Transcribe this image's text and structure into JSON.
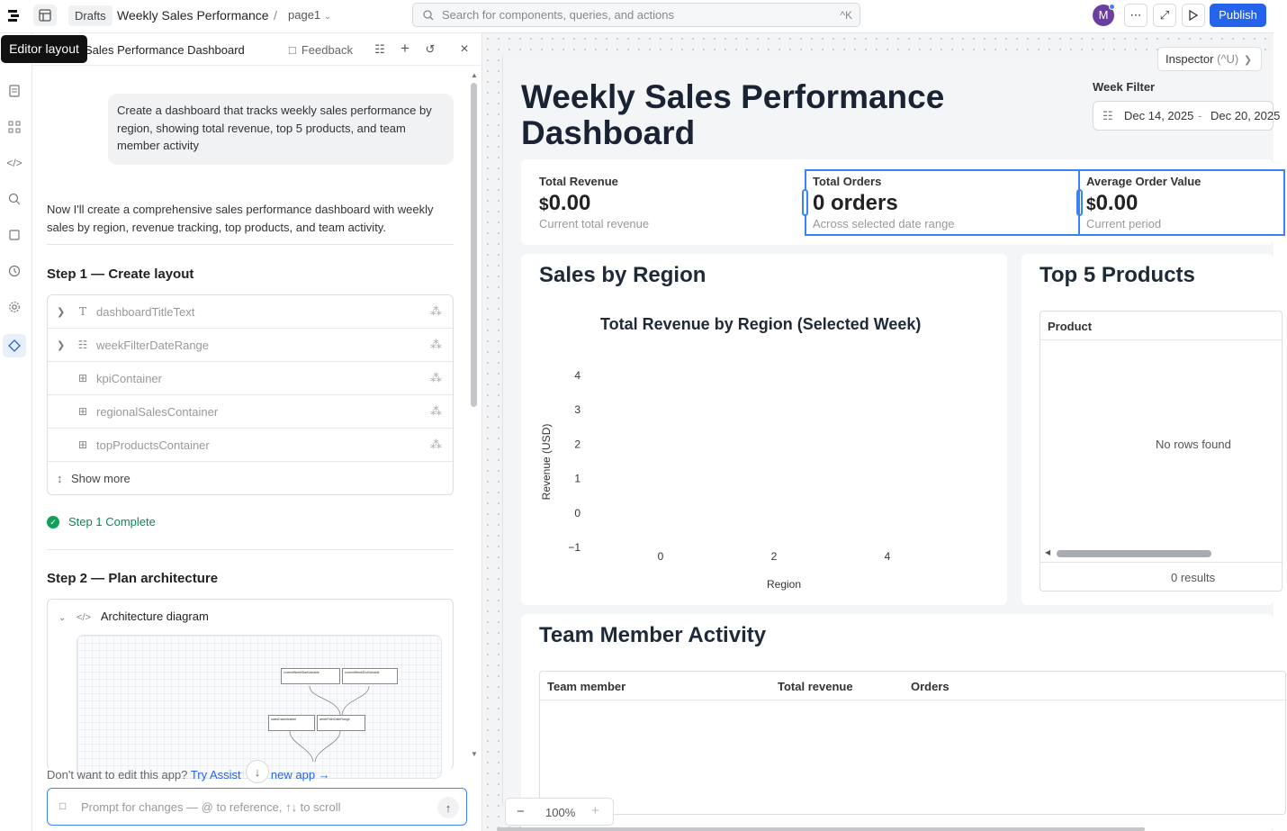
{
  "topbar": {
    "drafts_label": "Drafts",
    "app_title": "Weekly Sales Performance",
    "separator": "/",
    "page_name": "page1",
    "search_placeholder": "Search for components, queries, and actions",
    "search_shortcut": "^K",
    "avatar_initial": "M",
    "publish_label": "Publish",
    "accent_color": "#2563eb"
  },
  "tooltip": {
    "text": "Editor layout"
  },
  "panel": {
    "title": "Sales Performance Dashboard",
    "feedback_label": "Feedback",
    "user_message": "Create a dashboard that tracks weekly sales performance by region, showing total revenue, top 5 products, and team member activity",
    "assistant_message": "Now I'll create a comprehensive sales performance dashboard with weekly sales by region, revenue tracking, top products, and team activity.",
    "step1": {
      "title": "Step 1 — Create layout",
      "items": [
        {
          "label": "dashboardTitleText",
          "icon": "text-icon",
          "expandable": true
        },
        {
          "label": "weekFilterDateRange",
          "icon": "calendar-icon",
          "expandable": true
        },
        {
          "label": "kpiContainer",
          "icon": "grid-icon",
          "expandable": false
        },
        {
          "label": "regionalSalesContainer",
          "icon": "grid-icon",
          "expandable": false
        },
        {
          "label": "topProductsContainer",
          "icon": "grid-icon",
          "expandable": false
        }
      ],
      "show_more": "Show more",
      "complete": "Step 1 Complete"
    },
    "step2": {
      "title": "Step 2 — Plan architecture",
      "diagram_label": "Architecture diagram",
      "nodes": [
        "currentWeekStartVariable",
        "currentWeekEndVariable",
        "salesDataVariable",
        "weekFilterDateRange"
      ]
    },
    "hint": {
      "prefix": "Don't want to edit this app?",
      "link1": "Try Assist",
      "link2": "new app →"
    },
    "prompt_placeholder": "Prompt for changes — @ to reference, ↑↓ to scroll"
  },
  "canvas": {
    "inspector": {
      "label": "Inspector",
      "shortcut": "(^U)"
    },
    "dashboard_title": "Weekly Sales Performance Dashboard",
    "week_filter": {
      "label": "Week Filter",
      "start": "Dec 14, 2025",
      "dash": "-",
      "end": "Dec 20, 2025"
    },
    "kpis": [
      {
        "label": "Total Revenue",
        "prefix": "$",
        "value": "0.00",
        "sub": "Current total revenue"
      },
      {
        "label": "Total Orders",
        "prefix": "",
        "value": "0 orders",
        "sub": "Across selected date range"
      },
      {
        "label": "Average Order Value",
        "prefix": "$",
        "value": "0.00",
        "sub": "Current period"
      }
    ],
    "sales_by_region": {
      "title": "Sales by Region"
    },
    "top_products": {
      "title": "Top 5 Products",
      "column": "Product",
      "empty": "No rows found",
      "results": "0 results"
    },
    "team_activity": {
      "title": "Team Member Activity",
      "columns": [
        "Team member",
        "Total revenue",
        "Orders"
      ]
    },
    "zoom": {
      "minus": "−",
      "level": "100%",
      "plus": "+"
    }
  },
  "chart_data": {
    "type": "bar",
    "title": "Total Revenue by Region (Selected Week)",
    "xlabel": "Region",
    "ylabel": "Revenue (USD)",
    "series": [],
    "xlim": [
      -1,
      5
    ],
    "ylim": [
      -1,
      4
    ],
    "x_ticks": [
      "0",
      "2",
      "4"
    ],
    "y_ticks": [
      "4",
      "3",
      "2",
      "1",
      "0",
      "−1"
    ]
  }
}
